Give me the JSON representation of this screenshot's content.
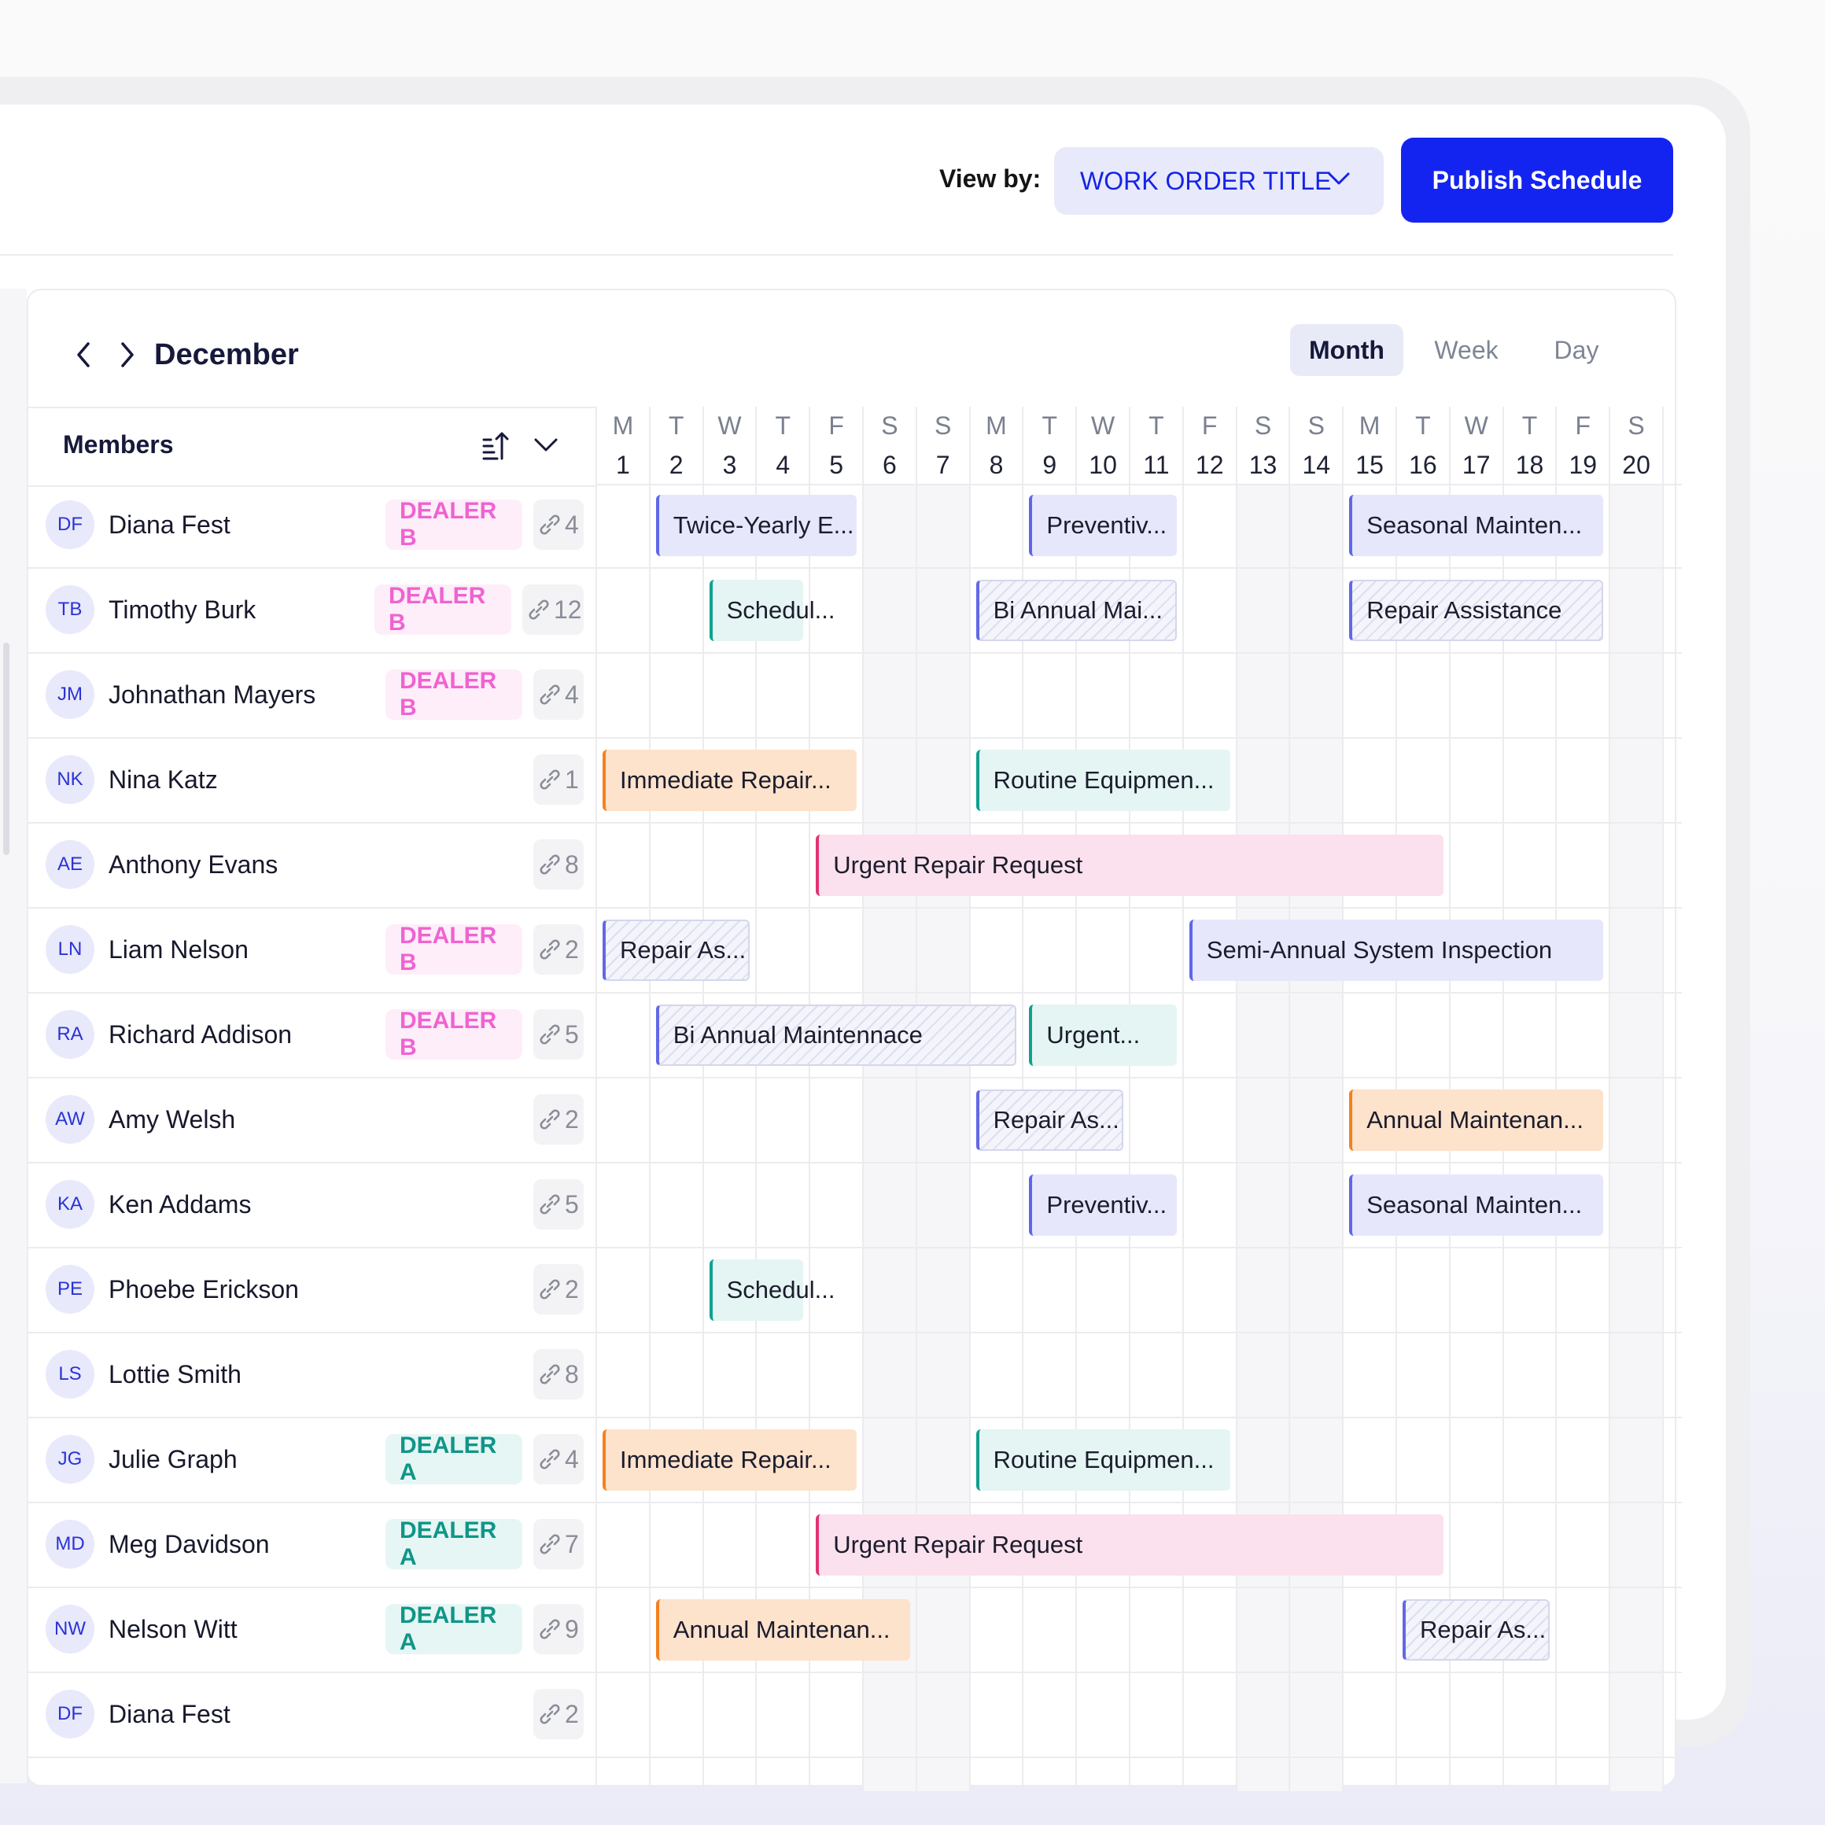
{
  "header": {
    "view_by_label": "View by:",
    "view_by_value": "WORK ORDER TITLE",
    "publish_label": "Publish Schedule"
  },
  "calendar": {
    "month": "December",
    "view_modes": [
      "Month",
      "Week",
      "Day"
    ],
    "selected_view": "Month",
    "members_title": "Members",
    "days": [
      {
        "l": "M",
        "n": "1"
      },
      {
        "l": "T",
        "n": "2"
      },
      {
        "l": "W",
        "n": "3"
      },
      {
        "l": "T",
        "n": "4"
      },
      {
        "l": "F",
        "n": "5"
      },
      {
        "l": "S",
        "n": "6"
      },
      {
        "l": "S",
        "n": "7"
      },
      {
        "l": "M",
        "n": "8"
      },
      {
        "l": "T",
        "n": "9"
      },
      {
        "l": "W",
        "n": "10"
      },
      {
        "l": "T",
        "n": "11"
      },
      {
        "l": "F",
        "n": "12"
      },
      {
        "l": "S",
        "n": "13"
      },
      {
        "l": "S",
        "n": "14"
      },
      {
        "l": "M",
        "n": "15"
      },
      {
        "l": "T",
        "n": "16"
      },
      {
        "l": "W",
        "n": "17"
      },
      {
        "l": "T",
        "n": "18"
      },
      {
        "l": "F",
        "n": "19"
      },
      {
        "l": "S",
        "n": "20"
      }
    ]
  },
  "members": [
    {
      "initials": "DF",
      "name": "Diana Fest",
      "dealer": "DEALER B",
      "dealer_color": "pink",
      "count": "4"
    },
    {
      "initials": "TB",
      "name": "Timothy Burk",
      "dealer": "DEALER B",
      "dealer_color": "pink",
      "count": "12"
    },
    {
      "initials": "JM",
      "name": "Johnathan Mayers",
      "dealer": "DEALER B",
      "dealer_color": "pink",
      "count": "4"
    },
    {
      "initials": "NK",
      "name": "Nina Katz",
      "dealer": "",
      "dealer_color": "",
      "count": "1"
    },
    {
      "initials": "AE",
      "name": "Anthony Evans",
      "dealer": "",
      "dealer_color": "",
      "count": "8"
    },
    {
      "initials": "LN",
      "name": "Liam Nelson",
      "dealer": "DEALER B",
      "dealer_color": "pink",
      "count": "2"
    },
    {
      "initials": "RA",
      "name": "Richard Addison",
      "dealer": "DEALER B",
      "dealer_color": "pink",
      "count": "5"
    },
    {
      "initials": "AW",
      "name": "Amy Welsh",
      "dealer": "",
      "dealer_color": "",
      "count": "2"
    },
    {
      "initials": "KA",
      "name": "Ken Addams",
      "dealer": "",
      "dealer_color": "",
      "count": "5"
    },
    {
      "initials": "PE",
      "name": "Phoebe Erickson",
      "dealer": "",
      "dealer_color": "",
      "count": "2"
    },
    {
      "initials": "LS",
      "name": "Lottie Smith",
      "dealer": "",
      "dealer_color": "",
      "count": "8"
    },
    {
      "initials": "JG",
      "name": "Julie Graph",
      "dealer": "DEALER A",
      "dealer_color": "teal",
      "count": "4"
    },
    {
      "initials": "MD",
      "name": "Meg Davidson",
      "dealer": "DEALER A",
      "dealer_color": "teal",
      "count": "7"
    },
    {
      "initials": "NW",
      "name": "Nelson Witt",
      "dealer": "DEALER A",
      "dealer_color": "teal",
      "count": "9"
    },
    {
      "initials": "DF",
      "name": "Diana Fest",
      "dealer": "",
      "dealer_color": "",
      "count": "2"
    }
  ],
  "work_orders": [
    {
      "row": 0,
      "start": 2,
      "end": 5,
      "title": "Twice-Yearly E...",
      "style": "purple"
    },
    {
      "row": 0,
      "start": 9,
      "end": 11,
      "title": "Preventiv...",
      "style": "purple"
    },
    {
      "row": 0,
      "start": 15,
      "end": 19,
      "title": "Seasonal Mainten...",
      "style": "purple"
    },
    {
      "row": 1,
      "start": 3,
      "end": 4,
      "title": "Schedul...",
      "style": "teal"
    },
    {
      "row": 1,
      "start": 8,
      "end": 11,
      "title": "Bi Annual Mai...",
      "style": "hatch"
    },
    {
      "row": 1,
      "start": 15,
      "end": 19,
      "title": "Repair Assistance",
      "style": "hatch"
    },
    {
      "row": 3,
      "start": 1,
      "end": 5,
      "title": "Immediate Repair...",
      "style": "orange"
    },
    {
      "row": 3,
      "start": 8,
      "end": 12,
      "title": "Routine Equipmen...",
      "style": "teal"
    },
    {
      "row": 4,
      "start": 5,
      "end": 16,
      "title": "Urgent Repair Request",
      "style": "pink"
    },
    {
      "row": 5,
      "start": 1,
      "end": 3,
      "title": "Repair As...",
      "style": "hatch"
    },
    {
      "row": 5,
      "start": 12,
      "end": 19,
      "title": "Semi-Annual System Inspection",
      "style": "purple"
    },
    {
      "row": 6,
      "start": 2,
      "end": 8,
      "title": "Bi Annual Maintennace",
      "style": "hatch"
    },
    {
      "row": 6,
      "start": 9,
      "end": 11,
      "title": "Urgent...",
      "style": "teal"
    },
    {
      "row": 7,
      "start": 8,
      "end": 10,
      "title": "Repair As...",
      "style": "hatch"
    },
    {
      "row": 7,
      "start": 15,
      "end": 19,
      "title": "Annual Maintenan...",
      "style": "orange"
    },
    {
      "row": 8,
      "start": 9,
      "end": 11,
      "title": "Preventiv...",
      "style": "purple"
    },
    {
      "row": 8,
      "start": 15,
      "end": 19,
      "title": "Seasonal Mainten...",
      "style": "purple"
    },
    {
      "row": 9,
      "start": 3,
      "end": 4,
      "title": "Schedul...",
      "style": "teal"
    },
    {
      "row": 11,
      "start": 1,
      "end": 5,
      "title": "Immediate Repair...",
      "style": "orange"
    },
    {
      "row": 11,
      "start": 8,
      "end": 12,
      "title": "Routine Equipmen...",
      "style": "teal"
    },
    {
      "row": 12,
      "start": 5,
      "end": 16,
      "title": "Urgent Repair Request",
      "style": "pink"
    },
    {
      "row": 13,
      "start": 2,
      "end": 6,
      "title": "Annual Maintenan...",
      "style": "orange"
    },
    {
      "row": 13,
      "start": 16,
      "end": 18,
      "title": "Repair As...",
      "style": "hatch"
    }
  ],
  "icons": {
    "prev": "chevron-left-icon",
    "next": "chevron-right-icon",
    "dropdown": "chevron-down-icon",
    "sort": "sort-icon",
    "work_order_count": "link-icon"
  },
  "colors": {
    "primary": "#1424f0",
    "dealer_b": "#ef63d1",
    "dealer_a": "#0f9688"
  }
}
